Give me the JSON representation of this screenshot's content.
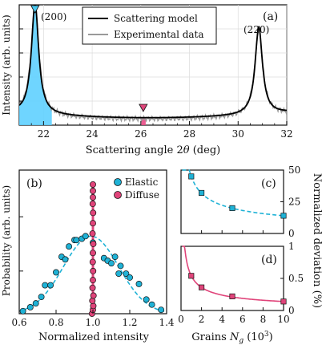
{
  "chart_data": [
    {
      "panel": "(a)",
      "type": "line",
      "xlabel": "Scattering angle 2θ (deg)",
      "ylabel": "Intensity (arb. units)",
      "xlim": [
        21,
        32
      ],
      "xticks": [
        22,
        24,
        26,
        28,
        30,
        32
      ],
      "grid": true,
      "legend_position": "top-center",
      "series": [
        {
          "name": "Scattering model",
          "color": "#000000",
          "peaks": [
            {
              "x": 21.65,
              "height": 0.92,
              "width": 0.18
            },
            {
              "x": 30.85,
              "height": 0.73,
              "width": 0.18
            }
          ],
          "baseline": 0.06
        },
        {
          "name": "Experimental data",
          "color": "#9a9a9a",
          "peaks": [
            {
              "x": 21.65,
              "height": 0.9,
              "width": 0.2
            },
            {
              "x": 30.85,
              "height": 0.71,
              "width": 0.2
            }
          ],
          "baseline": 0.05
        }
      ],
      "annotations": [
        {
          "text": "(200)",
          "x": 21.7
        },
        {
          "text": "(220)",
          "x": 30.85
        }
      ],
      "markers": [
        {
          "shape": "triangle-down",
          "x": 21.65,
          "color": "#49c9f0"
        },
        {
          "shape": "triangle-down",
          "x": 26.1,
          "color": "#e0447a"
        }
      ],
      "shaded_bands": [
        {
          "from": 21.0,
          "to": 22.35,
          "color": "#5fd0ff"
        },
        {
          "from": 26.0,
          "to": 26.2,
          "color": "#e94b86"
        }
      ]
    },
    {
      "panel": "(b)",
      "type": "scatter",
      "xlabel": "Normalized intensity",
      "ylabel": "Probability (arb. units)",
      "xlim": [
        0.6,
        1.4
      ],
      "xticks": [
        0.6,
        0.8,
        1.0,
        1.2,
        1.4
      ],
      "legend_position": "top-right",
      "series": [
        {
          "name": "Elastic",
          "color": "#1fb2d6",
          "fit": "gaussian",
          "mean": 0.99,
          "sigma": 0.15,
          "x": [
            0.62,
            0.66,
            0.69,
            0.72,
            0.74,
            0.77,
            0.8,
            0.83,
            0.85,
            0.87,
            0.9,
            0.91,
            0.94,
            0.96,
            1.0,
            1.06,
            1.08,
            1.1,
            1.12,
            1.14,
            1.15,
            1.18,
            1.2,
            1.25,
            1.29,
            1.32,
            1.37
          ],
          "y": [
            0.02,
            0.05,
            0.08,
            0.13,
            0.22,
            0.22,
            0.32,
            0.44,
            0.42,
            0.52,
            0.57,
            0.57,
            0.58,
            0.6,
            0.55,
            0.43,
            0.41,
            0.39,
            0.44,
            0.31,
            0.37,
            0.31,
            0.28,
            0.23,
            0.11,
            0.07,
            0.03
          ]
        },
        {
          "name": "Diffuse",
          "color": "#e0447a",
          "fit": "gaussian",
          "mean": 1.0,
          "sigma": 0.008,
          "x": [
            0.995,
            1.0,
            1.002,
            0.997,
            1.003,
            0.998,
            1.0,
            1.001,
            0.999,
            1.0,
            1.002,
            0.998,
            1.0,
            1.001,
            0.999,
            1.0,
            1.0,
            1.0
          ],
          "y": [
            0.0,
            0.03,
            0.06,
            0.1,
            0.14,
            0.2,
            0.26,
            0.33,
            0.4,
            0.47,
            0.54,
            0.62,
            0.7,
            0.78,
            0.85,
            0.9,
            0.95,
            1.0
          ]
        }
      ]
    },
    {
      "panel": "(c)",
      "type": "scatter",
      "xlim": [
        0,
        10
      ],
      "ylim": [
        0,
        50
      ],
      "yticks": [
        0,
        25,
        50
      ],
      "series": [
        {
          "name": "",
          "color": "#1fb2d6",
          "fit": "power",
          "x": [
            1,
            2,
            5,
            10
          ],
          "y": [
            45,
            32,
            20,
            14
          ]
        }
      ]
    },
    {
      "panel": "(d)",
      "type": "scatter",
      "xlabel": "Grains N_g (10^3)",
      "xlim": [
        0,
        10
      ],
      "ylim": [
        0,
        1.0
      ],
      "xticks": [
        0,
        2,
        4,
        6,
        8,
        10
      ],
      "yticks": [
        0,
        0.5,
        1.0
      ],
      "series": [
        {
          "name": "",
          "color": "#e0447a",
          "fit": "power",
          "x": [
            1,
            2,
            5,
            10
          ],
          "y": [
            0.54,
            0.36,
            0.22,
            0.14
          ]
        }
      ]
    }
  ],
  "shared_ylabel_right": "Normalized deviation (%)",
  "text": {
    "panel_a": "(a)",
    "panel_b": "(b)",
    "panel_c": "(c)",
    "panel_d": "(d)",
    "peak1": "(200)",
    "peak2": "(220)",
    "legend_a1": "Scattering model",
    "legend_a2": "Experimental data",
    "legend_b1": "Elastic",
    "legend_b2": "Diffuse",
    "xlabel_a_pre": "Scattering angle 2",
    "xlabel_a_theta": "θ",
    "xlabel_a_post": " (deg)",
    "ylabel_a": "Intensity (arb. units)",
    "xlabel_b": "Normalized intensity",
    "ylabel_b": "Probability (arb. units)",
    "xlabel_d_pre": "Grains ",
    "xlabel_d_N": "N",
    "xlabel_d_g": "g",
    "xlabel_d_post": " (10",
    "xlabel_d_exp": "3",
    "xlabel_d_close": ")",
    "ylabel_right": "Normalized deviation (%)"
  }
}
